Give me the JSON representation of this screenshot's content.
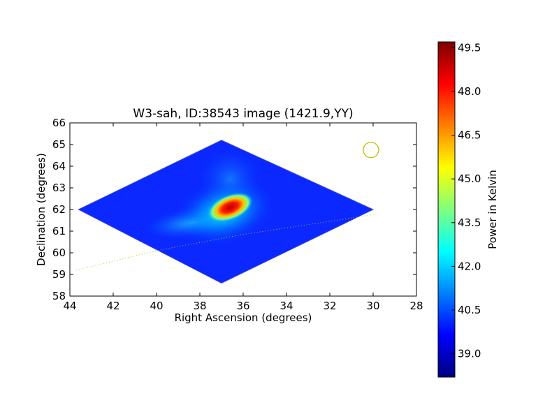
{
  "chart_data": {
    "type": "heatmap",
    "title": "W3-sah, ID:38543 image (1421.9,YY)",
    "xlabel": "Right Ascension (degrees)",
    "ylabel": "Declination (degrees)",
    "xlim": [
      44,
      28
    ],
    "ylim": [
      58,
      66
    ],
    "x_inverted": true,
    "x_ticks": [
      44,
      42,
      40,
      38,
      36,
      34,
      32,
      30,
      28
    ],
    "y_ticks": [
      58,
      59,
      60,
      61,
      62,
      63,
      64,
      65,
      66
    ],
    "x_tick_labels": [
      "44",
      "42",
      "40",
      "38",
      "36",
      "34",
      "32",
      "30",
      "28"
    ],
    "y_tick_labels": [
      "58",
      "59",
      "60",
      "61",
      "62",
      "63",
      "64",
      "65",
      "66"
    ],
    "grid": false,
    "map_outline": [
      [
        43.6,
        62.0
      ],
      [
        37.0,
        65.2
      ],
      [
        30.0,
        62.0
      ],
      [
        37.0,
        58.6
      ]
    ],
    "peak": {
      "ra": 36.6,
      "dec": 62.1
    },
    "colorbar": {
      "label": "Power in Kelvin",
      "vmin": 38.2,
      "vmax": 49.7,
      "ticks": [
        39.0,
        40.5,
        42.0,
        43.5,
        45.0,
        46.5,
        48.0,
        49.5
      ],
      "tick_labels": [
        "39.0",
        "40.5",
        "42.0",
        "43.5",
        "45.0",
        "46.5",
        "48.0",
        "49.5"
      ],
      "colormap": "jet"
    },
    "beam_circle": {
      "ra": 30.1,
      "dec": 64.75,
      "color": "#bfbf00"
    },
    "dotted_line": {
      "color": "#bfbf00",
      "points": [
        [
          43.7,
          59.2
        ],
        [
          40.0,
          60.1
        ],
        [
          36.0,
          60.85
        ],
        [
          32.0,
          61.45
        ],
        [
          29.8,
          61.8
        ]
      ]
    }
  }
}
